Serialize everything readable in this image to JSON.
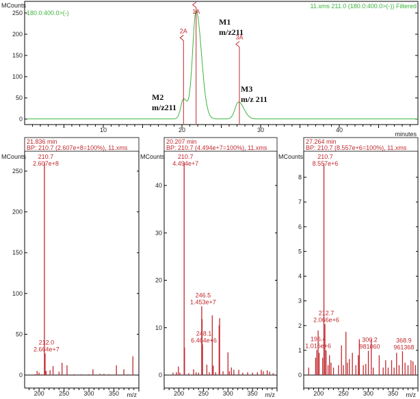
{
  "chart_data": [
    {
      "type": "line",
      "ylabel": "MCounts",
      "xlabel": "minutes",
      "xlim": [
        0,
        50
      ],
      "ylim": [
        0,
        260
      ],
      "x_ticks": [
        10,
        20,
        30,
        40
      ],
      "y_ticks": [
        0,
        50,
        100,
        150,
        200,
        250
      ],
      "trace_label_left": "180.0:400.0>(-)",
      "trace_label_right": "11.xms 211.0 (180.0:400.0>(-)) Filtered",
      "trace_color": "#3cb33c",
      "marker_color": "#c0272d",
      "peaks": [
        {
          "rt": 20.2,
          "height": 47,
          "width": 0.35
        },
        {
          "rt": 21.8,
          "height": 255,
          "width": 0.45
        },
        {
          "rt": 27.2,
          "height": 40,
          "width": 0.45
        }
      ],
      "markers": [
        {
          "label": "1A",
          "rt": 21.8,
          "top": 265
        },
        {
          "label": "2A",
          "rt": 20.2,
          "top": 185
        },
        {
          "label": "3A",
          "rt": 27.3,
          "top": 170
        }
      ],
      "annotations": [
        {
          "line1": "M1",
          "line2": "m/z211"
        },
        {
          "line1": "M2",
          "line2": "m/z211"
        },
        {
          "line1": "M3",
          "line2": "m/z 211"
        }
      ]
    },
    {
      "type": "bar",
      "header_time": "21.836 min",
      "header_bp": "BP: 210.7 (2.607e+8=100%), 11.xms",
      "ylabel": "MCounts",
      "xlabel": "m/z",
      "xlim": [
        171,
        400
      ],
      "ylim": [
        0,
        260
      ],
      "x_ticks": [
        200,
        250,
        300,
        350
      ],
      "y_ticks": [
        0,
        50,
        100,
        150,
        200,
        250
      ],
      "peaks": [
        [
          192,
          1
        ],
        [
          196,
          5
        ],
        [
          200,
          3
        ],
        [
          205,
          1
        ],
        [
          210.7,
          260.7
        ],
        [
          212,
          26.6
        ],
        [
          214,
          5
        ],
        [
          222,
          6
        ],
        [
          228,
          11
        ],
        [
          240,
          4
        ],
        [
          246,
          15
        ],
        [
          256,
          12
        ],
        [
          270,
          1
        ],
        [
          285,
          1
        ],
        [
          300,
          1
        ],
        [
          308,
          7
        ],
        [
          322,
          1.5
        ],
        [
          330,
          1.5
        ],
        [
          340,
          1
        ],
        [
          355,
          12
        ],
        [
          370,
          7
        ],
        [
          378,
          1
        ],
        [
          388,
          23
        ]
      ],
      "labels": [
        {
          "mz": "210.7",
          "value": "2.607e+8",
          "x": 210.7,
          "y": 260.7
        },
        {
          "mz": "212.0",
          "value": "2.664e+7",
          "x": 212,
          "y": 26.6
        }
      ]
    },
    {
      "type": "bar",
      "header_time": "20.207 min",
      "header_bp": "BP: 210.7 (4.494e+7=100%), 11.xms",
      "ylabel": "MCounts",
      "xlabel": "m/z",
      "xlim": [
        170,
        400
      ],
      "ylim": [
        0,
        46
      ],
      "x_ticks": [
        200,
        250,
        300,
        350
      ],
      "y_ticks": [
        0,
        10,
        20,
        30,
        40
      ],
      "peaks": [
        [
          188,
          0.5
        ],
        [
          195,
          0.6
        ],
        [
          199,
          1.8
        ],
        [
          202,
          0.5
        ],
        [
          210.7,
          44.94
        ],
        [
          211.5,
          5.8
        ],
        [
          220,
          0.4
        ],
        [
          230,
          1.2
        ],
        [
          235,
          0.6
        ],
        [
          240,
          0.5
        ],
        [
          246.5,
          14.53
        ],
        [
          247.3,
          11.8
        ],
        [
          248.1,
          6.46
        ],
        [
          257,
          2.2
        ],
        [
          262,
          0.6
        ],
        [
          268,
          12.6
        ],
        [
          270,
          2
        ],
        [
          275,
          0.6
        ],
        [
          282,
          10.5
        ],
        [
          283,
          12
        ],
        [
          290,
          0.8
        ],
        [
          300,
          4.8
        ],
        [
          303,
          0.8
        ],
        [
          307,
          1.6
        ],
        [
          312,
          1.1
        ],
        [
          322,
          1.1
        ],
        [
          330,
          0.5
        ],
        [
          340,
          0.6
        ],
        [
          350,
          0.5
        ],
        [
          360,
          0.6
        ],
        [
          368,
          1.1
        ],
        [
          372,
          0.8
        ],
        [
          380,
          1
        ],
        [
          385,
          0.7
        ],
        [
          392,
          0.4
        ]
      ],
      "labels": [
        {
          "mz": "210.7",
          "value": "4.494e+7",
          "x": 210.7,
          "y": 44.94
        },
        {
          "mz": "246.5",
          "value": "1.453e+7",
          "x": 246.5,
          "y": 14.53
        },
        {
          "mz": "248.1",
          "value": "6.464e+6",
          "x": 248.1,
          "y": 6.46
        }
      ]
    },
    {
      "type": "bar",
      "header_time": "27.264 min",
      "header_bp": "BP: 210.7 (8.557e+6=100%), 11.xms",
      "ylabel": "MCounts",
      "xlabel": "m/z",
      "xlim": [
        170,
        400
      ],
      "ylim": [
        0,
        8.9
      ],
      "x_ticks": [
        200,
        250,
        300,
        350
      ],
      "y_ticks": [
        0,
        1,
        2,
        3,
        4,
        5,
        6,
        7,
        8
      ],
      "peaks": [
        [
          180,
          0.3
        ],
        [
          194,
          0.7
        ],
        [
          196.4,
          1.016
        ],
        [
          199,
          1.8
        ],
        [
          201,
          0.9
        ],
        [
          208,
          0.7
        ],
        [
          210.7,
          8.557
        ],
        [
          212.7,
          2.066
        ],
        [
          215,
          1
        ],
        [
          219,
          0.4
        ],
        [
          222,
          0.8
        ],
        [
          225,
          0.5
        ],
        [
          230,
          0.3
        ],
        [
          240,
          0.4
        ],
        [
          246,
          1.2
        ],
        [
          250,
          0.4
        ],
        [
          255,
          1.75
        ],
        [
          258,
          0.5
        ],
        [
          262,
          0.65
        ],
        [
          268,
          0.9
        ],
        [
          275,
          0.4
        ],
        [
          280,
          0.8
        ],
        [
          282,
          1.45
        ],
        [
          290,
          0.4
        ],
        [
          295,
          0.45
        ],
        [
          300.2,
          0.981
        ],
        [
          306,
          1.45
        ],
        [
          310,
          0.3
        ],
        [
          322,
          0.8
        ],
        [
          330,
          0.3
        ],
        [
          335,
          0.6
        ],
        [
          340,
          0.3
        ],
        [
          347,
          0.6
        ],
        [
          352,
          0.3
        ],
        [
          357,
          0.9
        ],
        [
          362,
          0.4
        ],
        [
          368.9,
          0.961
        ],
        [
          374,
          0.5
        ],
        [
          380,
          0.4
        ],
        [
          386,
          0.6
        ],
        [
          390,
          0.55
        ],
        [
          395,
          0.4
        ]
      ],
      "labels": [
        {
          "mz": "210.7",
          "value": "8.557e+6",
          "x": 210.7,
          "y": 8.557
        },
        {
          "mz": "212.7",
          "value": "2.066e+6",
          "x": 212.7,
          "y": 2.066
        },
        {
          "mz": "196.4",
          "value": "1.016e+6",
          "x": 196.4,
          "y": 1.016
        },
        {
          "mz": "300.2",
          "value": "981060",
          "x": 300.2,
          "y": 0.981
        },
        {
          "mz": "368.9",
          "value": "961368",
          "x": 368.9,
          "y": 0.961
        }
      ]
    }
  ]
}
